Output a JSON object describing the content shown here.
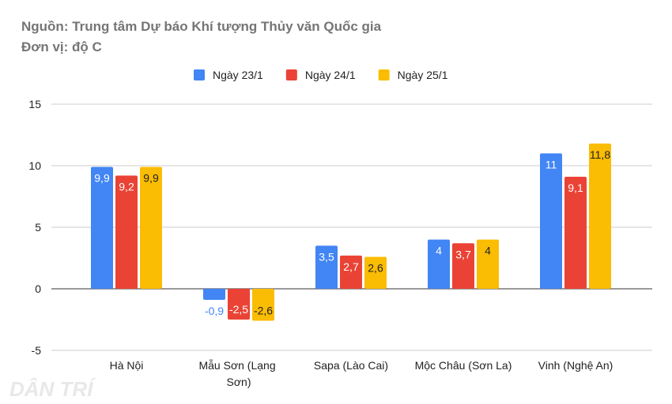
{
  "chart_data": {
    "type": "bar",
    "title": "Nguồn: Trung tâm Dự báo Khí tượng Thủy văn Quốc gia",
    "subtitle": "Đơn vị: độ C",
    "watermark": "DÂN TRÍ",
    "categories": [
      "Hà Nội",
      "Mẫu Sơn (Lạng Sơn)",
      "Sapa (Lào Cai)",
      "Mộc Châu (Sơn La)",
      "Vinh (Nghệ An)"
    ],
    "series": [
      {
        "name": "Ngày 23/1",
        "color": "#4285f4",
        "values": [
          9.9,
          -0.9,
          3.5,
          4,
          11
        ],
        "value_labels": [
          "9,9",
          "-0,9",
          "3,5",
          "4",
          "11"
        ]
      },
      {
        "name": "Ngày 24/1",
        "color": "#ea4335",
        "values": [
          9.2,
          -2.5,
          2.7,
          3.7,
          9.1
        ],
        "value_labels": [
          "9,2",
          "-2,5",
          "2,7",
          "3,7",
          "9,1"
        ]
      },
      {
        "name": "Ngày 25/1",
        "color": "#fbbc04",
        "values": [
          9.9,
          -2.6,
          2.6,
          4,
          11.8
        ],
        "value_labels": [
          "9,9",
          "-2,6",
          "2,6",
          "4",
          "11,8"
        ]
      }
    ],
    "ylim": [
      -5,
      15
    ],
    "yticks": [
      -5,
      0,
      5,
      10,
      15
    ],
    "grid": true,
    "legend": "top"
  }
}
